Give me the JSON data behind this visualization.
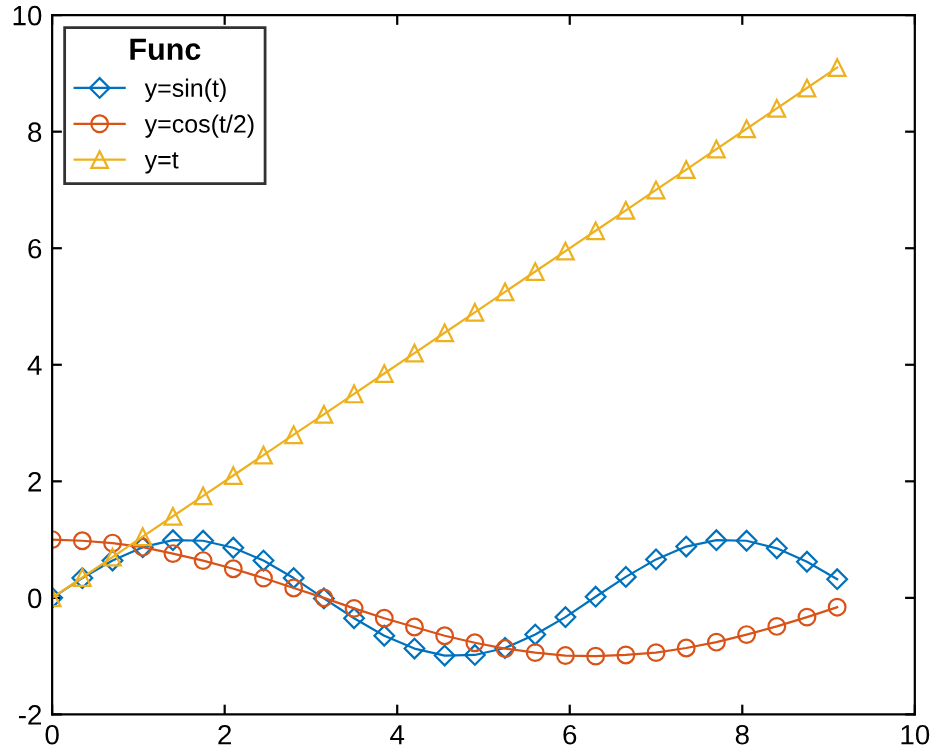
{
  "chart_data": {
    "type": "line",
    "legend_title": "Func",
    "legend": "top left",
    "grid": false,
    "x": [
      0,
      0.35,
      0.7,
      1.05,
      1.4,
      1.75,
      2.1,
      2.45,
      2.8,
      3.15,
      3.5,
      3.85,
      4.2,
      4.55,
      4.9,
      5.25,
      5.6,
      5.95,
      6.3,
      6.65,
      7.0,
      7.35,
      7.7,
      8.05,
      8.4,
      8.75,
      9.1
    ],
    "series": [
      {
        "name": "y=sin(t)",
        "color": "#0072bd",
        "marker": "diamond",
        "values": [
          0,
          0.34,
          0.64,
          0.87,
          0.99,
          0.98,
          0.86,
          0.64,
          0.34,
          -0.01,
          -0.35,
          -0.65,
          -0.87,
          -0.99,
          -0.98,
          -0.86,
          -0.63,
          -0.33,
          0.02,
          0.36,
          0.66,
          0.88,
          0.99,
          0.98,
          0.85,
          0.62,
          0.32
        ]
      },
      {
        "name": "y=cos(t/2)",
        "color": "#d95319",
        "marker": "circle",
        "values": [
          1,
          0.98,
          0.94,
          0.87,
          0.76,
          0.64,
          0.5,
          0.34,
          0.17,
          0,
          -0.18,
          -0.35,
          -0.5,
          -0.65,
          -0.77,
          -0.87,
          -0.94,
          -0.99,
          -1,
          -0.98,
          -0.94,
          -0.86,
          -0.76,
          -0.63,
          -0.49,
          -0.33,
          -0.16
        ]
      },
      {
        "name": "y=t",
        "color": "#edb120",
        "marker": "triangle",
        "values": [
          0,
          0.35,
          0.7,
          1.05,
          1.4,
          1.75,
          2.1,
          2.45,
          2.8,
          3.15,
          3.5,
          3.85,
          4.2,
          4.55,
          4.9,
          5.25,
          5.6,
          5.95,
          6.3,
          6.65,
          7.0,
          7.35,
          7.7,
          8.05,
          8.4,
          8.75,
          9.1
        ]
      }
    ],
    "xlim": [
      0,
      10
    ],
    "xticks": [
      0,
      2,
      4,
      6,
      8,
      10
    ],
    "ylim": [
      -2,
      10
    ],
    "yticks": [
      -2,
      0,
      2,
      4,
      6,
      8,
      10
    ]
  }
}
